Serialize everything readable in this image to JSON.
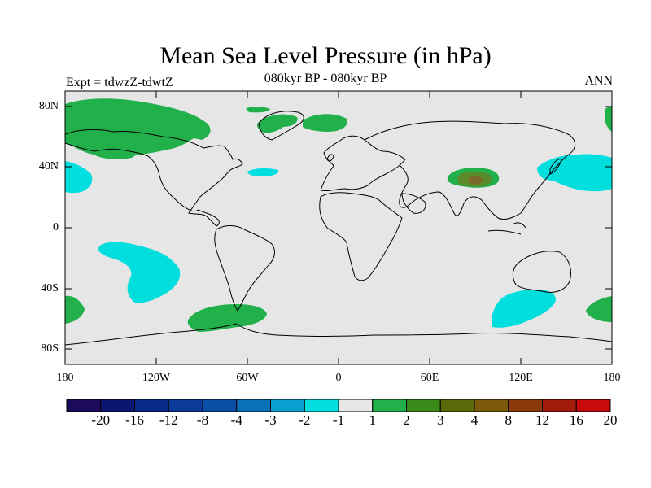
{
  "title": "Mean Sea Level Pressure (in hPa)",
  "subtitle": "080kyr BP - 080kyr BP",
  "left_label": "Expt = tdwzZ-tdwtZ",
  "right_label": "ANN",
  "lat_ticks": [
    "80N",
    "40N",
    "0",
    "40S",
    "80S"
  ],
  "lon_ticks": [
    "180",
    "120W",
    "60W",
    "0",
    "60E",
    "120E",
    "180"
  ],
  "colorbar": {
    "colors": [
      "#1c0a5a",
      "#0d1572",
      "#0a2a8a",
      "#0a3a9a",
      "#0a4ea8",
      "#0a70b8",
      "#0aa0d0",
      "#00dede",
      "#e6e6e6",
      "#22b04a",
      "#3a8a1a",
      "#5a6a0a",
      "#7a5a0a",
      "#8a3a0a",
      "#a21a0a",
      "#c80a0a"
    ],
    "labels": [
      "-20",
      "-16",
      "-12",
      "-8",
      "-4",
      "-3",
      "-2",
      "-1",
      "1",
      "2",
      "3",
      "4",
      "8",
      "12",
      "16",
      "20"
    ]
  },
  "map_colors": {
    "ocean_land_background": "#e6e6e6",
    "positive_light": "#22b04a",
    "positive_mid": "#5a8a2a",
    "positive_strong": "#7a6a2a",
    "negative_light": "#00dede",
    "coastline": "#000000"
  }
}
